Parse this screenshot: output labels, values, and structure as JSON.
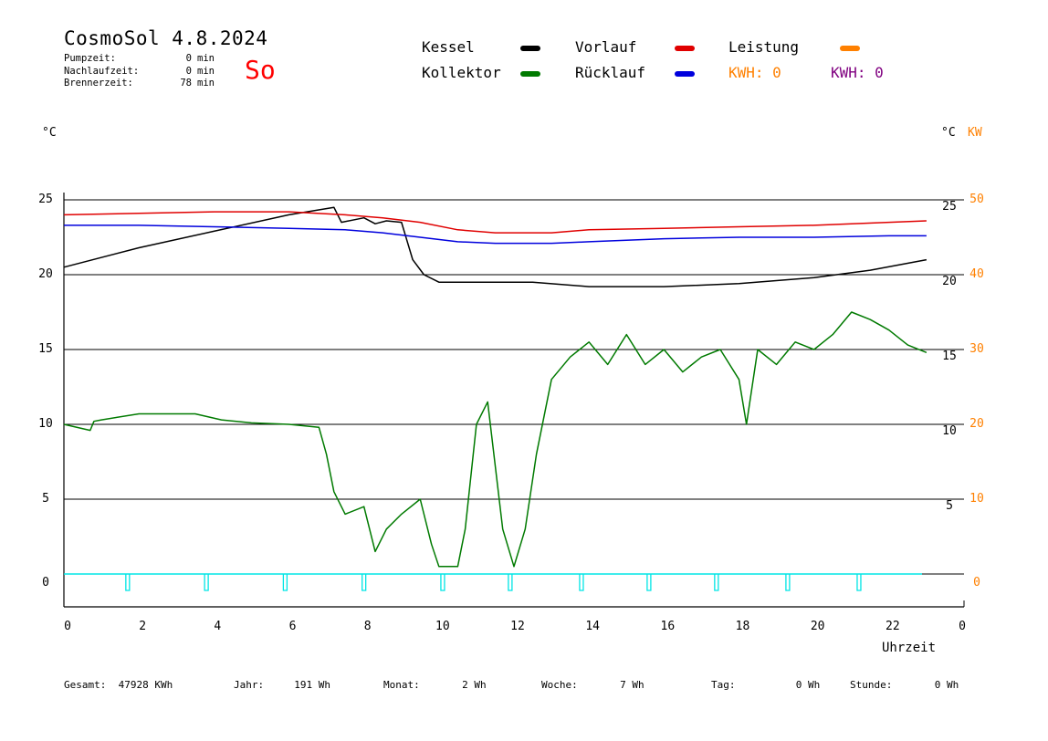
{
  "header": {
    "title": "CosmoSol 4.8.2024",
    "day": "So",
    "stats": [
      {
        "label": "Pumpzeit:",
        "value": "0",
        "unit": "min"
      },
      {
        "label": "Nachlaufzeit:",
        "value": "0",
        "unit": "min"
      },
      {
        "label": "Brennerzeit:",
        "value": "78",
        "unit": "min"
      }
    ]
  },
  "legend": {
    "kessel": "Kessel",
    "kollektor": "Kollektor",
    "vorlauf": "Vorlauf",
    "ruecklauf": "Rücklauf",
    "leistung": "Leistung",
    "kwh1": "KWH: 0",
    "kwh2": "KWH: 0"
  },
  "axes": {
    "left_unit": "°C",
    "right_unit_c": "°C",
    "right_unit_kw": "KW",
    "x_label": "Uhrzeit"
  },
  "footer": [
    {
      "label": "Gesamt:",
      "value": "47928 KWh"
    },
    {
      "label": "Jahr:",
      "value": "191 Wh"
    },
    {
      "label": "Monat:",
      "value": "2 Wh"
    },
    {
      "label": "Woche:",
      "value": "7 Wh"
    },
    {
      "label": "Tag:",
      "value": "0 Wh"
    },
    {
      "label": "Stunde:",
      "value": "0 Wh"
    }
  ],
  "colors": {
    "kessel": "#000000",
    "kollektor": "#007a00",
    "vorlauf": "#e00000",
    "ruecklauf": "#0000dd",
    "leistung": "#ff8000",
    "kwh2": "#800080",
    "pump": "#00e5e5",
    "day": "#ff0000"
  },
  "chart_data": {
    "type": "line",
    "xlabel": "Uhrzeit",
    "ylabel": "°C",
    "xlim": [
      0,
      24
    ],
    "ylim_left": [
      -2,
      25
    ],
    "ylim_right_kw": [
      0,
      50
    ],
    "x_ticks": [
      "0",
      "2",
      "4",
      "6",
      "8",
      "10",
      "12",
      "14",
      "16",
      "18",
      "20",
      "22",
      "0"
    ],
    "y_ticks_left": [
      "0",
      "5",
      "10",
      "15",
      "20",
      "25"
    ],
    "y_ticks_right_c": [
      "5",
      "10",
      "15",
      "20",
      "25"
    ],
    "y_ticks_right_kw": [
      "0",
      "10",
      "20",
      "30",
      "40",
      "50"
    ],
    "grid": "horizontal",
    "series": [
      {
        "name": "Kessel",
        "x": [
          0,
          2,
          4,
          6,
          7.2,
          7.4,
          8.0,
          8.3,
          8.6,
          9.0,
          9.3,
          9.6,
          10.0,
          12.5,
          14.0,
          16.0,
          18.0,
          20.0,
          21.5,
          23.0
        ],
        "y": [
          20.5,
          21.8,
          22.9,
          24.0,
          24.5,
          23.5,
          23.8,
          23.4,
          23.6,
          23.5,
          21.0,
          20.0,
          19.5,
          19.5,
          19.2,
          19.2,
          19.4,
          19.8,
          20.3,
          21.0
        ]
      },
      {
        "name": "Vorlauf",
        "x": [
          0,
          2,
          4,
          6,
          7.5,
          8.5,
          9.5,
          10.5,
          11.5,
          13,
          14,
          16,
          18,
          20,
          22,
          23
        ],
        "y": [
          24.0,
          24.1,
          24.2,
          24.2,
          24.0,
          23.8,
          23.5,
          23.0,
          22.8,
          22.8,
          23.0,
          23.1,
          23.2,
          23.3,
          23.5,
          23.6
        ]
      },
      {
        "name": "Rücklauf",
        "x": [
          0,
          2,
          4,
          6,
          7.5,
          8.5,
          9.5,
          10.5,
          11.5,
          13,
          14,
          16,
          18,
          20,
          22,
          23
        ],
        "y": [
          23.3,
          23.3,
          23.2,
          23.1,
          23.0,
          22.8,
          22.5,
          22.2,
          22.1,
          22.1,
          22.2,
          22.4,
          22.5,
          22.5,
          22.6,
          22.6
        ]
      },
      {
        "name": "Kollektor",
        "x": [
          0,
          0.7,
          0.8,
          1.0,
          2.0,
          3.5,
          4.2,
          5.0,
          6.0,
          6.8,
          7.0,
          7.2,
          7.5,
          8.0,
          8.3,
          8.6,
          9.0,
          9.5,
          9.8,
          10.0,
          10.5,
          10.7,
          11.0,
          11.3,
          11.7,
          12.0,
          12.3,
          12.6,
          13.0,
          13.5,
          14.0,
          14.5,
          15.0,
          15.5,
          16.0,
          16.5,
          17.0,
          17.5,
          18.0,
          18.2,
          18.5,
          19.0,
          19.5,
          20.0,
          20.5,
          21.0,
          21.5,
          22.0,
          22.5,
          23.0
        ],
        "y": [
          10.0,
          9.6,
          10.2,
          10.3,
          10.7,
          10.7,
          10.3,
          10.1,
          10.0,
          9.8,
          8.0,
          5.5,
          4.0,
          4.5,
          1.5,
          3.0,
          4.0,
          5.0,
          2.0,
          0.5,
          0.5,
          3.0,
          10.0,
          11.5,
          3.0,
          0.5,
          3.0,
          8.0,
          13.0,
          14.5,
          15.5,
          14.0,
          16.0,
          14.0,
          15.0,
          13.5,
          14.5,
          15.0,
          13.0,
          10.0,
          15.0,
          14.0,
          15.5,
          15.0,
          16.0,
          17.5,
          17.0,
          16.3,
          15.3,
          14.8
        ]
      },
      {
        "name": "Pumpe",
        "x": [
          1.7,
          3.8,
          5.9,
          8.0,
          10.1,
          11.9,
          13.8,
          15.6,
          17.4,
          19.3,
          21.2
        ]
      }
    ]
  }
}
